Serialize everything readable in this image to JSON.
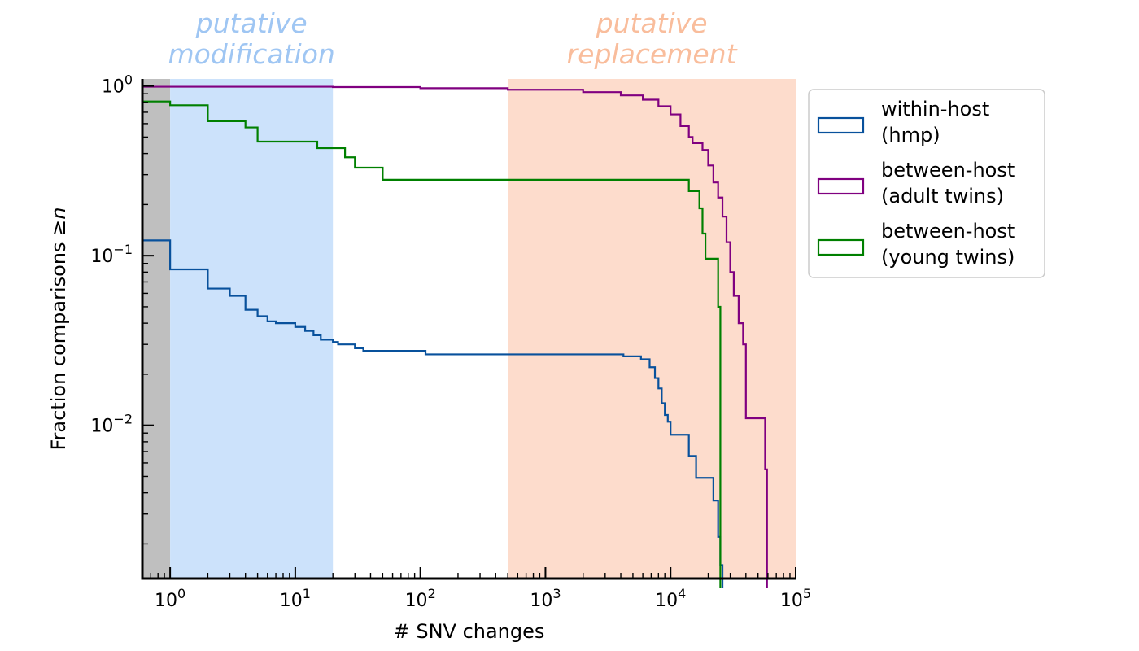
{
  "chart_data": {
    "type": "line",
    "step": true,
    "xscale": "log",
    "yscale": "log",
    "xlabel": "# SNV changes",
    "ylabel_prefix": "Fraction comparisons ≥",
    "ylabel_var": "n",
    "xlim": [
      0.6,
      100000
    ],
    "ylim": [
      0.00125,
      1.1
    ],
    "x_ticks": [
      {
        "value": 1,
        "base": "10",
        "exp": "0"
      },
      {
        "value": 10,
        "base": "10",
        "exp": "1"
      },
      {
        "value": 100,
        "base": "10",
        "exp": "2"
      },
      {
        "value": 1000,
        "base": "10",
        "exp": "3"
      },
      {
        "value": 10000,
        "base": "10",
        "exp": "4"
      },
      {
        "value": 100000,
        "base": "10",
        "exp": "5"
      }
    ],
    "y_ticks": [
      {
        "value": 1,
        "base": "10",
        "exp": "0"
      },
      {
        "value": 0.1,
        "base": "10",
        "exp": "−1"
      },
      {
        "value": 0.01,
        "base": "10",
        "exp": "−2"
      }
    ],
    "regions": [
      {
        "name": "grey",
        "x0": 0.6,
        "x1": 1,
        "color": "#bfbfbf"
      },
      {
        "name": "putative-modification",
        "x0": 1,
        "x1": 20,
        "color": "#cce2fb",
        "label_lines": [
          "putative",
          "modification"
        ],
        "label_color": "#9fc6f3"
      },
      {
        "name": "putative-replacement",
        "x0": 500,
        "x1": 100000,
        "color": "#fddccc",
        "label_lines": [
          "putative",
          "replacement"
        ],
        "label_color": "#f9bd9c"
      }
    ],
    "series": [
      {
        "key": "hmp",
        "label_lines": [
          "within-host",
          "(hmp)"
        ],
        "color": "#08519c",
        "points": [
          [
            0.6,
            0.123
          ],
          [
            1,
            0.083
          ],
          [
            2,
            0.064
          ],
          [
            3,
            0.058
          ],
          [
            4,
            0.048
          ],
          [
            5,
            0.044
          ],
          [
            6,
            0.041
          ],
          [
            7,
            0.04
          ],
          [
            10,
            0.038
          ],
          [
            12,
            0.036
          ],
          [
            14,
            0.034
          ],
          [
            16,
            0.032
          ],
          [
            20,
            0.031
          ],
          [
            22,
            0.03
          ],
          [
            30,
            0.0285
          ],
          [
            35,
            0.0275
          ],
          [
            110,
            0.0262
          ],
          [
            4200,
            0.0255
          ],
          [
            5800,
            0.0245
          ],
          [
            6800,
            0.022
          ],
          [
            7500,
            0.019
          ],
          [
            8000,
            0.0165
          ],
          [
            8500,
            0.0135
          ],
          [
            9000,
            0.0115
          ],
          [
            9500,
            0.0105
          ],
          [
            10000,
            0.0088
          ],
          [
            14000,
            0.0066
          ],
          [
            16000,
            0.0049
          ],
          [
            22000,
            0.0036
          ],
          [
            24000,
            0.0022
          ],
          [
            25000,
            0.0015
          ],
          [
            26000,
            0.0011
          ]
        ]
      },
      {
        "key": "adult-twins",
        "label_lines": [
          "between-host",
          "(adult twins)"
        ],
        "color": "#800080",
        "points": [
          [
            0.6,
            0.99
          ],
          [
            20,
            0.985
          ],
          [
            100,
            0.97
          ],
          [
            500,
            0.95
          ],
          [
            2000,
            0.92
          ],
          [
            4000,
            0.88
          ],
          [
            6000,
            0.83
          ],
          [
            8000,
            0.76
          ],
          [
            10000,
            0.68
          ],
          [
            12000,
            0.58
          ],
          [
            14000,
            0.5
          ],
          [
            15000,
            0.46
          ],
          [
            18000,
            0.42
          ],
          [
            20000,
            0.34
          ],
          [
            22000,
            0.27
          ],
          [
            24000,
            0.22
          ],
          [
            26000,
            0.17
          ],
          [
            28000,
            0.12
          ],
          [
            30000,
            0.08
          ],
          [
            32000,
            0.058
          ],
          [
            35000,
            0.04
          ],
          [
            38000,
            0.03
          ],
          [
            40000,
            0.011
          ],
          [
            57000,
            0.0055
          ],
          [
            59000,
            0.0011
          ]
        ]
      },
      {
        "key": "young-twins",
        "label_lines": [
          "between-host",
          "(young twins)"
        ],
        "color": "#008000",
        "points": [
          [
            0.6,
            0.81
          ],
          [
            1,
            0.77
          ],
          [
            2,
            0.62
          ],
          [
            4,
            0.57
          ],
          [
            5,
            0.47
          ],
          [
            15,
            0.43
          ],
          [
            25,
            0.38
          ],
          [
            30,
            0.33
          ],
          [
            50,
            0.28
          ],
          [
            14000,
            0.24
          ],
          [
            17000,
            0.19
          ],
          [
            18000,
            0.135
          ],
          [
            19000,
            0.096
          ],
          [
            24000,
            0.05
          ],
          [
            25000,
            0.0011
          ]
        ]
      }
    ]
  }
}
